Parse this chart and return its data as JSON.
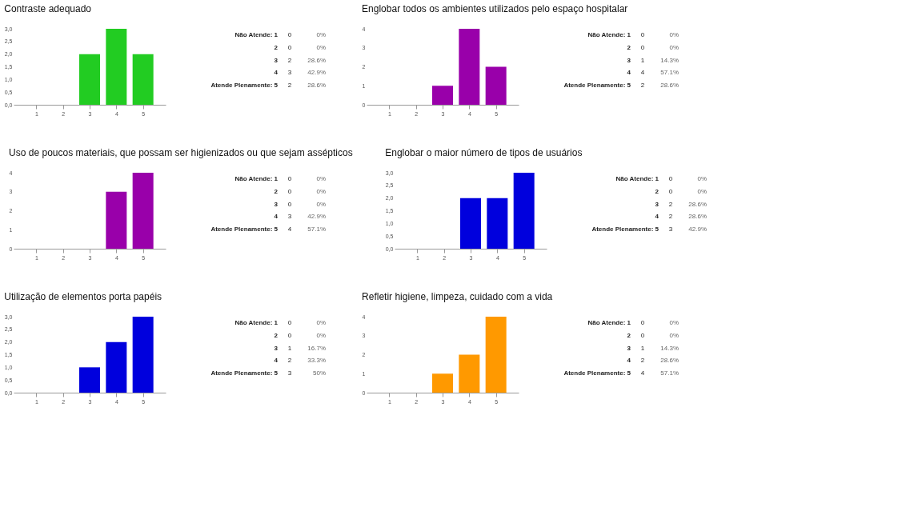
{
  "chart_data": [
    {
      "type": "bar",
      "title": "Contraste adequado",
      "categories": [
        "1",
        "2",
        "3",
        "4",
        "5"
      ],
      "values": [
        0,
        0,
        2,
        3,
        2
      ],
      "color": "#22cc22",
      "ylim": [
        0,
        3
      ],
      "yticks": [
        {
          "value": 0,
          "label": "0,0"
        },
        {
          "value": 0.5,
          "label": "0,5"
        },
        {
          "value": 1,
          "label": "1,0"
        },
        {
          "value": 1.5,
          "label": "1,5"
        },
        {
          "value": 2,
          "label": "2,0"
        },
        {
          "value": 2.5,
          "label": "2,5"
        },
        {
          "value": 3,
          "label": "3,0"
        }
      ],
      "annotations": [
        "Não Atende: 1",
        "0",
        "0%",
        "2",
        "0",
        "0%",
        "3",
        "2",
        "28.6%",
        "4",
        "3",
        "42.9%",
        "Atende Plenamente: 5",
        "2",
        "28.6%"
      ]
    },
    {
      "type": "bar",
      "title": "Englobar todos os ambientes utilizados pelo espaço hospitalar",
      "categories": [
        "1",
        "2",
        "3",
        "4",
        "5"
      ],
      "values": [
        0,
        0,
        1,
        4,
        2
      ],
      "color": "#9900aa",
      "ylim": [
        0,
        4
      ],
      "yticks": [
        0,
        1,
        2,
        3,
        4
      ],
      "annotations": [
        "Não Atende: 1",
        "0",
        "0%",
        "2",
        "0",
        "0%",
        "3",
        "1",
        "14.3%",
        "4",
        "4",
        "57.1%",
        "Atende Plenamente: 5",
        "2",
        "28.6%"
      ]
    },
    {
      "type": "bar",
      "title": "Uso de poucos materiais, que possam ser higienizados ou que sejam assépticos",
      "categories": [
        "1",
        "2",
        "3",
        "4",
        "5"
      ],
      "values": [
        0,
        0,
        0,
        3,
        4
      ],
      "color": "#9900aa",
      "ylim": [
        0,
        4
      ],
      "yticks": [
        0,
        1,
        2,
        3,
        4
      ],
      "annotations": [
        "Não Atende: 1",
        "0",
        "0%",
        "2",
        "0",
        "0%",
        "3",
        "0",
        "0%",
        "4",
        "3",
        "42.9%",
        "Atende Plenamente: 5",
        "4",
        "57.1%"
      ]
    },
    {
      "type": "bar",
      "title": "Englobar o maior número de tipos de usuários",
      "categories": [
        "1",
        "2",
        "3",
        "4",
        "5"
      ],
      "values": [
        0,
        0,
        2,
        2,
        3
      ],
      "color": "#0000dd",
      "ylim": [
        0,
        3
      ],
      "yticks": [
        {
          "value": 0,
          "label": "0,0"
        },
        {
          "value": 0.5,
          "label": "0,5"
        },
        {
          "value": 1,
          "label": "1,0"
        },
        {
          "value": 1.5,
          "label": "1,5"
        },
        {
          "value": 2,
          "label": "2,0"
        },
        {
          "value": 2.5,
          "label": "2,5"
        },
        {
          "value": 3,
          "label": "3,0"
        }
      ],
      "annotations": [
        "Não Atende: 1",
        "0",
        "0%",
        "2",
        "0",
        "0%",
        "3",
        "2",
        "28.6%",
        "4",
        "2",
        "28.6%",
        "Atende Plenamente: 5",
        "3",
        "42.9%"
      ]
    },
    {
      "type": "bar",
      "title": "Utilização de elementos porta papéis",
      "categories": [
        "1",
        "2",
        "3",
        "4",
        "5"
      ],
      "values": [
        0,
        0,
        1,
        2,
        3
      ],
      "color": "#0000dd",
      "ylim": [
        0,
        3
      ],
      "yticks": [
        {
          "value": 0,
          "label": "0,0"
        },
        {
          "value": 0.5,
          "label": "0,5"
        },
        {
          "value": 1,
          "label": "1,0"
        },
        {
          "value": 1.5,
          "label": "1,5"
        },
        {
          "value": 2,
          "label": "2,0"
        },
        {
          "value": 2.5,
          "label": "2,5"
        },
        {
          "value": 3,
          "label": "3,0"
        }
      ],
      "annotations": [
        "Não Atende: 1",
        "0",
        "0%",
        "2",
        "0",
        "0%",
        "3",
        "1",
        "16.7%",
        "4",
        "2",
        "33.3%",
        "Atende Plenamente: 5",
        "3",
        "50%"
      ]
    },
    {
      "type": "bar",
      "title": "Refletir higiene, limpeza, cuidado com a vida",
      "categories": [
        "1",
        "2",
        "3",
        "4",
        "5"
      ],
      "values": [
        0,
        0,
        1,
        2,
        4
      ],
      "color": "#ff9900",
      "ylim": [
        0,
        4
      ],
      "yticks": [
        0,
        1,
        2,
        3,
        4
      ],
      "annotations": [
        "Não Atende: 1",
        "0",
        "0%",
        "2",
        "0",
        "0%",
        "3",
        "1",
        "14.3%",
        "4",
        "2",
        "28.6%",
        "Atende Plenamente: 5",
        "4",
        "57.1%"
      ]
    }
  ]
}
